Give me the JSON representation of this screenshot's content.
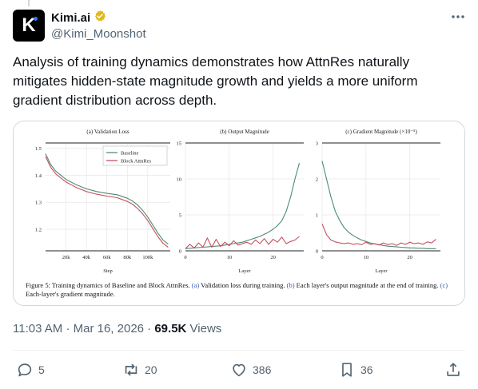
{
  "author": {
    "display_name": "Kimi.ai",
    "handle": "@Kimi_Moonshot",
    "avatar_letter": "K",
    "verified_color": "#e2b719"
  },
  "tweet": {
    "text": "Analysis of training dynamics demonstrates how AttnRes naturally mitigates hidden-state magnitude growth and yields a more uniform gradient distribution across depth."
  },
  "figure": {
    "caption_parts": {
      "lead": "Figure 5: Training dynamics of Baseline and Block AttnRes. ",
      "a_tag": "(a)",
      "a_text": " Validation loss during training. ",
      "b_tag": "(b)",
      "b_text": " Each layer's output magnitude at the end of training. ",
      "c_tag": "(c)",
      "c_text": " Each-layer's gradient magnitude."
    }
  },
  "chart_data": [
    {
      "type": "line",
      "title": "(a) Validation Loss",
      "xlabel": "Step",
      "ylabel": "",
      "xlim": [
        0,
        122000
      ],
      "ylim": [
        1.12,
        1.52
      ],
      "x_ticks": [
        "20k",
        "40k",
        "60k",
        "80k",
        "100k"
      ],
      "x_tick_values": [
        20000,
        40000,
        60000,
        80000,
        100000
      ],
      "y_ticks": [
        "1.2",
        "1.3",
        "1.4",
        "1.5"
      ],
      "y_tick_values": [
        1.2,
        1.3,
        1.4,
        1.5
      ],
      "legend": [
        "Baseline",
        "Block AttnRes"
      ],
      "legend_position": "top-right",
      "series": [
        {
          "name": "Baseline",
          "color": "#4e8a73",
          "x": [
            0,
            5000,
            10000,
            20000,
            30000,
            40000,
            50000,
            60000,
            70000,
            80000,
            85000,
            90000,
            95000,
            100000,
            105000,
            110000,
            115000,
            120000
          ],
          "y": [
            1.48,
            1.44,
            1.415,
            1.385,
            1.365,
            1.35,
            1.34,
            1.333,
            1.328,
            1.315,
            1.305,
            1.29,
            1.27,
            1.245,
            1.215,
            1.185,
            1.16,
            1.145
          ]
        },
        {
          "name": "Block AttnRes",
          "color": "#c44e5e",
          "x": [
            0,
            5000,
            10000,
            20000,
            30000,
            40000,
            50000,
            60000,
            70000,
            80000,
            85000,
            90000,
            95000,
            100000,
            105000,
            110000,
            115000,
            120000
          ],
          "y": [
            1.47,
            1.43,
            1.405,
            1.375,
            1.355,
            1.34,
            1.33,
            1.323,
            1.317,
            1.303,
            1.293,
            1.277,
            1.257,
            1.232,
            1.202,
            1.172,
            1.148,
            1.133
          ]
        }
      ]
    },
    {
      "type": "line",
      "title": "(b) Output Magnitude",
      "xlabel": "Layer",
      "ylabel": "",
      "xlim": [
        0,
        27
      ],
      "ylim": [
        0,
        15
      ],
      "x_ticks": [
        "0",
        "10",
        "20"
      ],
      "x_tick_values": [
        0,
        10,
        20
      ],
      "y_ticks": [
        "0",
        "5",
        "10",
        "15"
      ],
      "y_tick_values": [
        0,
        5,
        10,
        15
      ],
      "series": [
        {
          "name": "Baseline",
          "color": "#4e8a73",
          "x": [
            0,
            1,
            2,
            3,
            4,
            5,
            6,
            7,
            8,
            9,
            10,
            11,
            12,
            13,
            14,
            15,
            16,
            17,
            18,
            19,
            20,
            21,
            22,
            23,
            24,
            25,
            26
          ],
          "y": [
            0.3,
            0.35,
            0.4,
            0.45,
            0.5,
            0.55,
            0.6,
            0.65,
            0.7,
            0.8,
            0.9,
            1.0,
            1.1,
            1.2,
            1.4,
            1.6,
            1.8,
            2.0,
            2.3,
            2.6,
            3.0,
            3.5,
            4.2,
            5.5,
            7.5,
            10.0,
            12.2
          ]
        },
        {
          "name": "Block AttnRes",
          "color": "#c44e5e",
          "x": [
            0,
            1,
            2,
            3,
            4,
            5,
            6,
            7,
            8,
            9,
            10,
            11,
            12,
            13,
            14,
            15,
            16,
            17,
            18,
            19,
            20,
            21,
            22,
            23,
            24,
            25,
            26
          ],
          "y": [
            0.3,
            0.9,
            0.4,
            1.1,
            0.5,
            1.8,
            0.5,
            1.6,
            0.6,
            1.2,
            0.7,
            1.4,
            0.8,
            1.0,
            1.2,
            0.9,
            1.5,
            1.0,
            1.7,
            0.9,
            1.6,
            1.2,
            1.9,
            1.0,
            1.3,
            1.5,
            2.0
          ]
        }
      ]
    },
    {
      "type": "line",
      "title": "(c) Gradient Magnitude (×10⁻⁵)",
      "xlabel": "Layer",
      "ylabel": "",
      "xlim": [
        0,
        27
      ],
      "ylim": [
        0,
        3
      ],
      "x_ticks": [
        "0",
        "10",
        "20"
      ],
      "x_tick_values": [
        0,
        10,
        20
      ],
      "y_ticks": [
        "0",
        "1",
        "2",
        "3"
      ],
      "y_tick_values": [
        0,
        1,
        2,
        3
      ],
      "series": [
        {
          "name": "Baseline",
          "color": "#4e8a73",
          "x": [
            0,
            1,
            2,
            3,
            4,
            5,
            6,
            7,
            8,
            9,
            10,
            11,
            12,
            13,
            14,
            15,
            16,
            17,
            18,
            19,
            20,
            21,
            22,
            23,
            24,
            25,
            26
          ],
          "y": [
            2.5,
            2.0,
            1.5,
            1.1,
            0.85,
            0.65,
            0.52,
            0.43,
            0.36,
            0.3,
            0.26,
            0.22,
            0.19,
            0.17,
            0.15,
            0.13,
            0.12,
            0.11,
            0.1,
            0.09,
            0.08,
            0.08,
            0.07,
            0.07,
            0.06,
            0.06,
            0.06
          ]
        },
        {
          "name": "Block AttnRes",
          "color": "#c44e5e",
          "x": [
            0,
            1,
            2,
            3,
            4,
            5,
            6,
            7,
            8,
            9,
            10,
            11,
            12,
            13,
            14,
            15,
            16,
            17,
            18,
            19,
            20,
            21,
            22,
            23,
            24,
            25,
            26
          ],
          "y": [
            0.75,
            0.45,
            0.3,
            0.25,
            0.22,
            0.2,
            0.22,
            0.18,
            0.2,
            0.17,
            0.24,
            0.18,
            0.2,
            0.16,
            0.22,
            0.17,
            0.2,
            0.15,
            0.22,
            0.18,
            0.24,
            0.2,
            0.22,
            0.18,
            0.25,
            0.22,
            0.32
          ]
        }
      ]
    }
  ],
  "meta": {
    "time": "11:03 AM",
    "separator": "·",
    "date": "Mar 16, 2026",
    "views_count": "69.5K",
    "views_label": "Views"
  },
  "actions": {
    "replies": "5",
    "reposts": "20",
    "likes": "386",
    "bookmarks": "36"
  }
}
